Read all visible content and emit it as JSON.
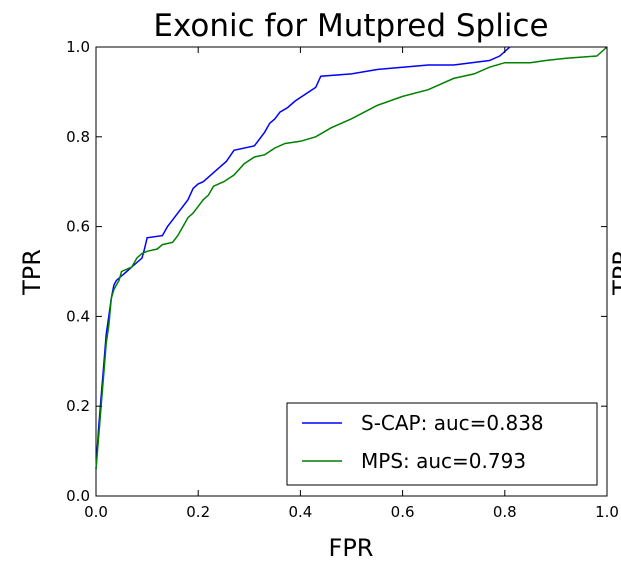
{
  "chart_data": {
    "type": "line",
    "title": "Exonic for Mutpred Splice",
    "xlabel": "FPR",
    "ylabel": "TPR",
    "xlim": [
      0,
      1
    ],
    "ylim": [
      0,
      1
    ],
    "xticks": [
      "0.0",
      "0.2",
      "0.4",
      "0.6",
      "0.8",
      "1.0"
    ],
    "yticks": [
      "0.0",
      "0.2",
      "0.4",
      "0.6",
      "0.8",
      "1.0"
    ],
    "grid": false,
    "legend_position": "lower-right",
    "clipped_neighbor_label": "TPR",
    "series": [
      {
        "name": "S-CAP: auc=0.838",
        "color": "#0000ff",
        "points": [
          [
            0.0,
            0.06
          ],
          [
            0.005,
            0.15
          ],
          [
            0.01,
            0.22
          ],
          [
            0.015,
            0.29
          ],
          [
            0.02,
            0.36
          ],
          [
            0.025,
            0.4
          ],
          [
            0.03,
            0.44
          ],
          [
            0.035,
            0.47
          ],
          [
            0.04,
            0.48
          ],
          [
            0.05,
            0.49
          ],
          [
            0.06,
            0.5
          ],
          [
            0.07,
            0.51
          ],
          [
            0.08,
            0.52
          ],
          [
            0.09,
            0.53
          ],
          [
            0.095,
            0.55
          ],
          [
            0.1,
            0.575
          ],
          [
            0.13,
            0.58
          ],
          [
            0.14,
            0.6
          ],
          [
            0.15,
            0.615
          ],
          [
            0.16,
            0.63
          ],
          [
            0.17,
            0.645
          ],
          [
            0.18,
            0.66
          ],
          [
            0.19,
            0.685
          ],
          [
            0.2,
            0.695
          ],
          [
            0.21,
            0.7
          ],
          [
            0.22,
            0.71
          ],
          [
            0.23,
            0.72
          ],
          [
            0.24,
            0.73
          ],
          [
            0.255,
            0.745
          ],
          [
            0.27,
            0.77
          ],
          [
            0.31,
            0.78
          ],
          [
            0.33,
            0.81
          ],
          [
            0.34,
            0.83
          ],
          [
            0.35,
            0.84
          ],
          [
            0.36,
            0.855
          ],
          [
            0.375,
            0.865
          ],
          [
            0.39,
            0.88
          ],
          [
            0.41,
            0.895
          ],
          [
            0.43,
            0.91
          ],
          [
            0.44,
            0.935
          ],
          [
            0.5,
            0.94
          ],
          [
            0.55,
            0.95
          ],
          [
            0.6,
            0.955
          ],
          [
            0.65,
            0.96
          ],
          [
            0.7,
            0.96
          ],
          [
            0.77,
            0.97
          ],
          [
            0.79,
            0.98
          ],
          [
            0.8,
            0.99
          ],
          [
            0.81,
            1.0
          ]
        ]
      },
      {
        "name": "MPS: auc=0.793",
        "color": "#008000",
        "points": [
          [
            0.0,
            0.06
          ],
          [
            0.005,
            0.13
          ],
          [
            0.01,
            0.2
          ],
          [
            0.015,
            0.27
          ],
          [
            0.02,
            0.34
          ],
          [
            0.025,
            0.38
          ],
          [
            0.03,
            0.44
          ],
          [
            0.035,
            0.46
          ],
          [
            0.04,
            0.47
          ],
          [
            0.045,
            0.48
          ],
          [
            0.05,
            0.5
          ],
          [
            0.07,
            0.51
          ],
          [
            0.08,
            0.53
          ],
          [
            0.09,
            0.54
          ],
          [
            0.1,
            0.545
          ],
          [
            0.12,
            0.55
          ],
          [
            0.13,
            0.56
          ],
          [
            0.15,
            0.565
          ],
          [
            0.16,
            0.58
          ],
          [
            0.17,
            0.6
          ],
          [
            0.18,
            0.62
          ],
          [
            0.19,
            0.63
          ],
          [
            0.2,
            0.645
          ],
          [
            0.21,
            0.66
          ],
          [
            0.22,
            0.67
          ],
          [
            0.23,
            0.69
          ],
          [
            0.25,
            0.7
          ],
          [
            0.27,
            0.715
          ],
          [
            0.29,
            0.74
          ],
          [
            0.31,
            0.755
          ],
          [
            0.33,
            0.76
          ],
          [
            0.35,
            0.775
          ],
          [
            0.37,
            0.785
          ],
          [
            0.4,
            0.79
          ],
          [
            0.43,
            0.8
          ],
          [
            0.46,
            0.82
          ],
          [
            0.5,
            0.84
          ],
          [
            0.55,
            0.87
          ],
          [
            0.6,
            0.89
          ],
          [
            0.65,
            0.905
          ],
          [
            0.7,
            0.93
          ],
          [
            0.74,
            0.94
          ],
          [
            0.77,
            0.955
          ],
          [
            0.8,
            0.965
          ],
          [
            0.85,
            0.965
          ],
          [
            0.88,
            0.97
          ],
          [
            0.92,
            0.975
          ],
          [
            0.98,
            0.98
          ],
          [
            0.99,
            0.99
          ],
          [
            1.0,
            1.0
          ]
        ]
      }
    ]
  }
}
